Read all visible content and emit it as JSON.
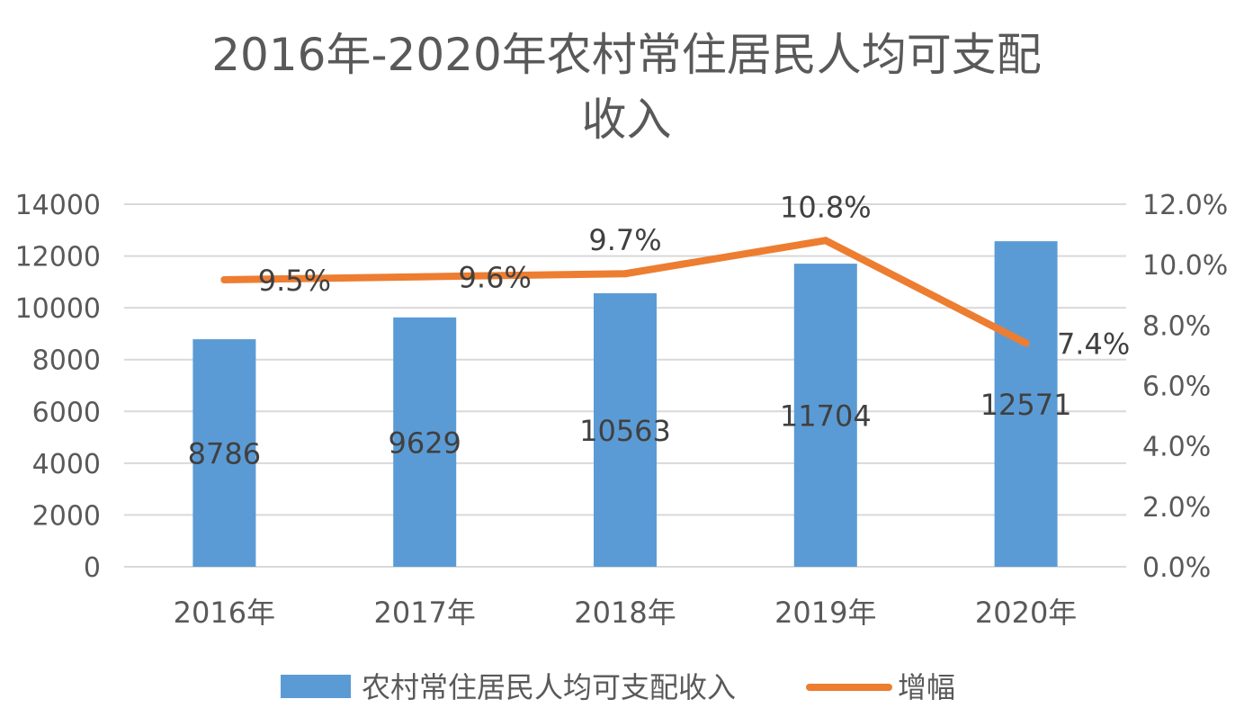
{
  "chart_data": {
    "type": "bar",
    "title_line1": "2016年-2020年农村常住居民人均可支配",
    "title_line2": "收入",
    "categories": [
      "2016年",
      "2017年",
      "2018年",
      "2019年",
      "2020年"
    ],
    "series": [
      {
        "name": "农村常住居民人均可支配收入",
        "type": "bar",
        "axis": "left",
        "color": "#5B9BD5",
        "values": [
          8786,
          9629,
          10563,
          11704,
          12571
        ],
        "labels": [
          "8786",
          "9629",
          "10563",
          "11704",
          "12571"
        ]
      },
      {
        "name": "增幅",
        "type": "line",
        "axis": "right",
        "color": "#ED7D31",
        "values": [
          9.5,
          9.6,
          9.7,
          10.8,
          7.4
        ],
        "labels": [
          "9.5%",
          "9.6%",
          "9.7%",
          "10.8%",
          "7.4%"
        ]
      }
    ],
    "y_left": {
      "min": 0,
      "max": 14000,
      "ticks": [
        "0",
        "2000",
        "4000",
        "6000",
        "8000",
        "10000",
        "12000",
        "14000"
      ]
    },
    "y_right": {
      "min": 0,
      "max": 12,
      "ticks": [
        "0.0%",
        "2.0%",
        "4.0%",
        "6.0%",
        "8.0%",
        "10.0%",
        "12.0%"
      ]
    },
    "grid": true,
    "legend_position": "bottom"
  }
}
